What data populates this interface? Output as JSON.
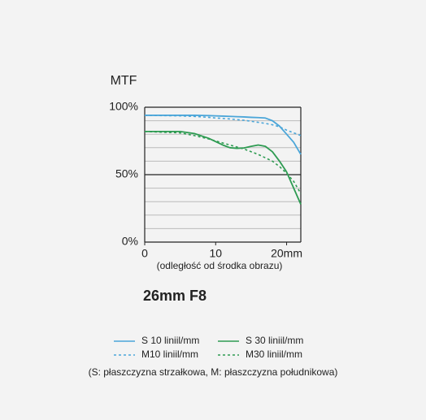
{
  "chart_data": {
    "type": "line",
    "title": "26mm F8",
    "y_label": "MTF",
    "x_label": "(odległość od środka obrazu)",
    "note": "(S: płaszczyzna strzałkowa, M: płaszczyzna południkowa)",
    "x": [
      0,
      5,
      7,
      9,
      10,
      11,
      12,
      13,
      14,
      15,
      16,
      17,
      18,
      19,
      20,
      21,
      22
    ],
    "xlim": [
      0,
      22
    ],
    "xticks": [
      0,
      10,
      {
        "value": 20,
        "label": "20mm"
      }
    ],
    "ylim": [
      0,
      100
    ],
    "yticks": [
      {
        "value": 0,
        "label": "0%"
      },
      {
        "value": 50,
        "label": "50%"
      },
      {
        "value": 100,
        "label": "100%"
      }
    ],
    "minor_yticks": [
      10,
      20,
      30,
      40,
      60,
      70,
      80,
      90
    ],
    "grid": true,
    "series": [
      {
        "name": "S 10 liniil/mm",
        "color": "#4ba6d9",
        "dash": false,
        "values": [
          94,
          94,
          94,
          93.8,
          93.6,
          93.4,
          93.2,
          93,
          92.8,
          92.5,
          92.3,
          92,
          90,
          86,
          80,
          74,
          65
        ]
      },
      {
        "name": "M10 liniil/mm",
        "color": "#4ba6d9",
        "dash": true,
        "values": [
          94,
          93.6,
          93.2,
          92.5,
          92,
          91.7,
          91.3,
          90.8,
          90.3,
          89.6,
          88.8,
          88,
          87,
          85.5,
          83,
          81,
          79
        ]
      },
      {
        "name": "S 30 liniil/mm",
        "color": "#2e9b52",
        "dash": false,
        "values": [
          82,
          82,
          80.5,
          77,
          74.5,
          72,
          70,
          69.5,
          69.8,
          71,
          72,
          71,
          67,
          60,
          52,
          40,
          28
        ]
      },
      {
        "name": "M30 liniil/mm",
        "color": "#2e9b52",
        "dash": true,
        "values": [
          82,
          81,
          79,
          76.5,
          75,
          73.5,
          72,
          70.5,
          69,
          67,
          65,
          62.5,
          60,
          56,
          51,
          45,
          36
        ]
      }
    ]
  }
}
